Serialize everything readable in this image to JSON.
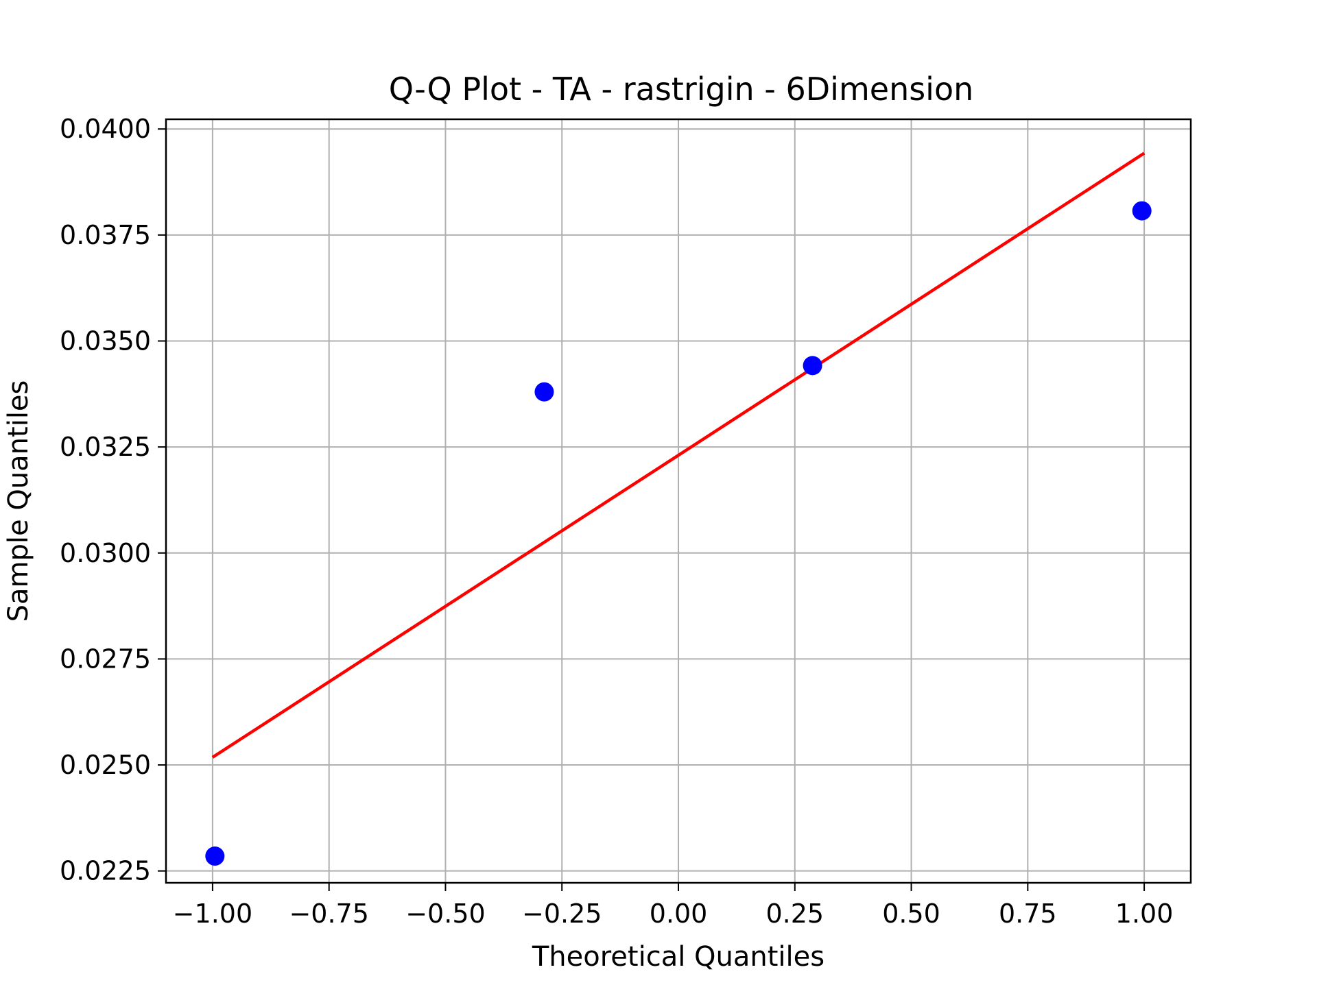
{
  "chart_data": {
    "type": "scatter",
    "title": "Q-Q Plot - TA - rastrigin - 6Dimension",
    "xlabel": "Theoretical Quantiles",
    "ylabel": "Sample Quantiles",
    "xlim": [
      -1.1,
      1.1
    ],
    "ylim": [
      0.02222,
      0.04023
    ],
    "x_ticks": [
      -1.0,
      -0.75,
      -0.5,
      -0.25,
      0.0,
      0.25,
      0.5,
      0.75,
      1.0
    ],
    "x_tick_labels": [
      "−1.00",
      "−0.75",
      "−0.50",
      "−0.25",
      "0.00",
      "0.25",
      "0.50",
      "0.75",
      "1.00"
    ],
    "y_ticks": [
      0.0225,
      0.025,
      0.0275,
      0.03,
      0.0325,
      0.035,
      0.0375,
      0.04
    ],
    "y_tick_labels": [
      "0.0225",
      "0.0250",
      "0.0275",
      "0.0300",
      "0.0325",
      "0.0350",
      "0.0375",
      "0.0400"
    ],
    "grid": true,
    "series": [
      {
        "kind": "points",
        "color": "#0000ff",
        "x": [
          -0.995,
          -0.288,
          0.288,
          0.995
        ],
        "y": [
          0.02285,
          0.0338,
          0.03442,
          0.03807
        ]
      },
      {
        "kind": "line",
        "color": "#ff0000",
        "x": [
          -1.0,
          1.0
        ],
        "y": [
          0.02518,
          0.03943
        ]
      }
    ]
  }
}
